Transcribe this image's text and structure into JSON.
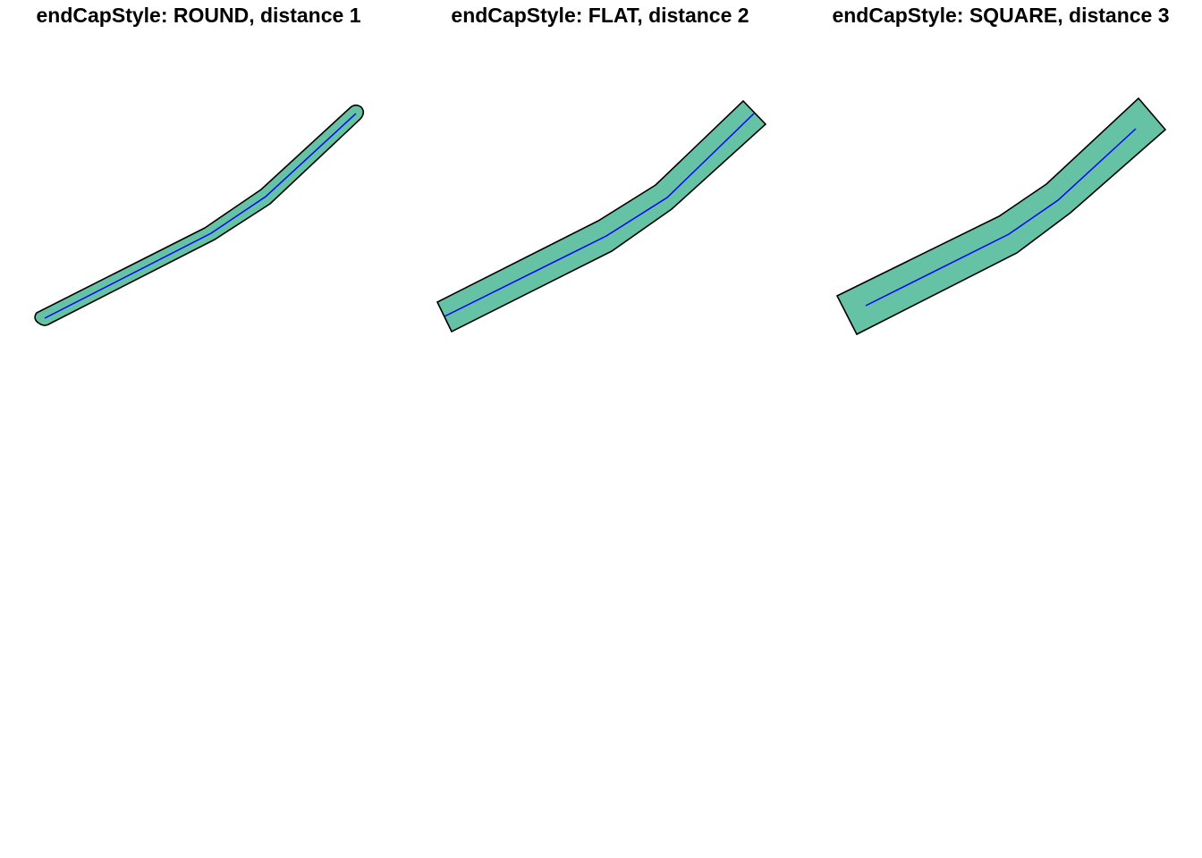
{
  "panels": [
    {
      "title": "endCapStyle: ROUND, distance 1",
      "end_cap_style": "ROUND",
      "distance": 1
    },
    {
      "title": "endCapStyle: FLAT, distance 2",
      "end_cap_style": "FLAT",
      "distance": 2
    },
    {
      "title": "endCapStyle: SQUARE, distance 3",
      "end_cap_style": "SQUARE",
      "distance": 3
    }
  ],
  "colors": {
    "buffer_fill": "#66c2a5",
    "buffer_stroke": "#000000",
    "line_stroke": "#0000ff",
    "background": "#ffffff"
  }
}
